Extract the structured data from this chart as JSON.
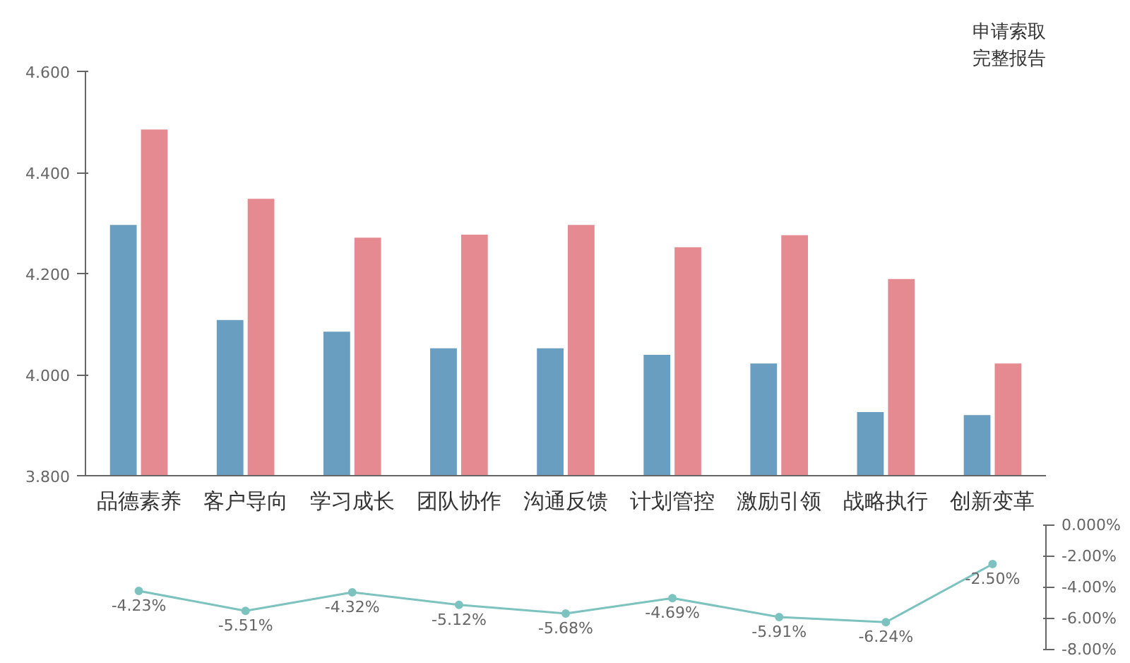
{
  "chart_data": [
    {
      "type": "bar",
      "categories": [
        null,
        null,
        null,
        null,
        null,
        null,
        null,
        null,
        null
      ],
      "tick_labels": "y",
      "series": [
        {
          "type": "bar",
          "color": "#6a9ec0",
          "values": [
            4.296,
            4.108,
            4.085,
            4.052,
            4.052,
            4.039,
            4.022,
            3.926,
            3.92
          ]
        },
        {
          "type": "bar",
          "color": "#e68a92",
          "values": [
            4.485,
            4.348,
            4.271,
            4.277,
            4.296,
            4.252,
            4.276,
            4.189,
            4.022
          ]
        }
      ],
      "ylim": [
        3.8,
        4.6
      ],
      "yticks": [
        {
          "value": 3.8,
          "label": "3.800"
        },
        {
          "value": 4.0,
          "label": "4.000"
        },
        {
          "value": 4.2,
          "label": "4.200"
        },
        {
          "value": 4.4,
          "label": "4.400"
        },
        {
          "value": 4.6,
          "label": "4.600"
        }
      ],
      "annotations": [
        "申请索取",
        "完整报告"
      ],
      "grid": false
    },
    {
      "type": "line",
      "categories": [
        "品德素养",
        "客户导向",
        "学习成长",
        "团队协作",
        "沟通反馈",
        "计划管控",
        "激励引领",
        "战略执行",
        "创新变革"
      ],
      "series": [
        {
          "axis": "y2",
          "color": "#7cc3c0",
          "values": [
            -4.23,
            -5.51,
            -4.32,
            -5.12,
            -5.68,
            -4.69,
            -5.91,
            -6.24,
            -2.5
          ],
          "value_labels": [
            "-4.23%",
            "-5.51%",
            "-4.32%",
            "-5.12%",
            "-5.68%",
            "-4.69%",
            "-5.91%",
            "-6.24%",
            "-2.50%"
          ]
        }
      ],
      "marker": "circle",
      "y2lim": [
        -8,
        0
      ],
      "y2ticks": [
        {
          "value": 0,
          "label": "0.000%"
        },
        {
          "value": -2,
          "label": "-2.00%"
        },
        {
          "value": -4,
          "label": "-4.00%"
        },
        {
          "value": -6,
          "label": "-6.00%"
        },
        {
          "value": -8,
          "label": "-8.00%"
        }
      ],
      "grid": false
    }
  ]
}
